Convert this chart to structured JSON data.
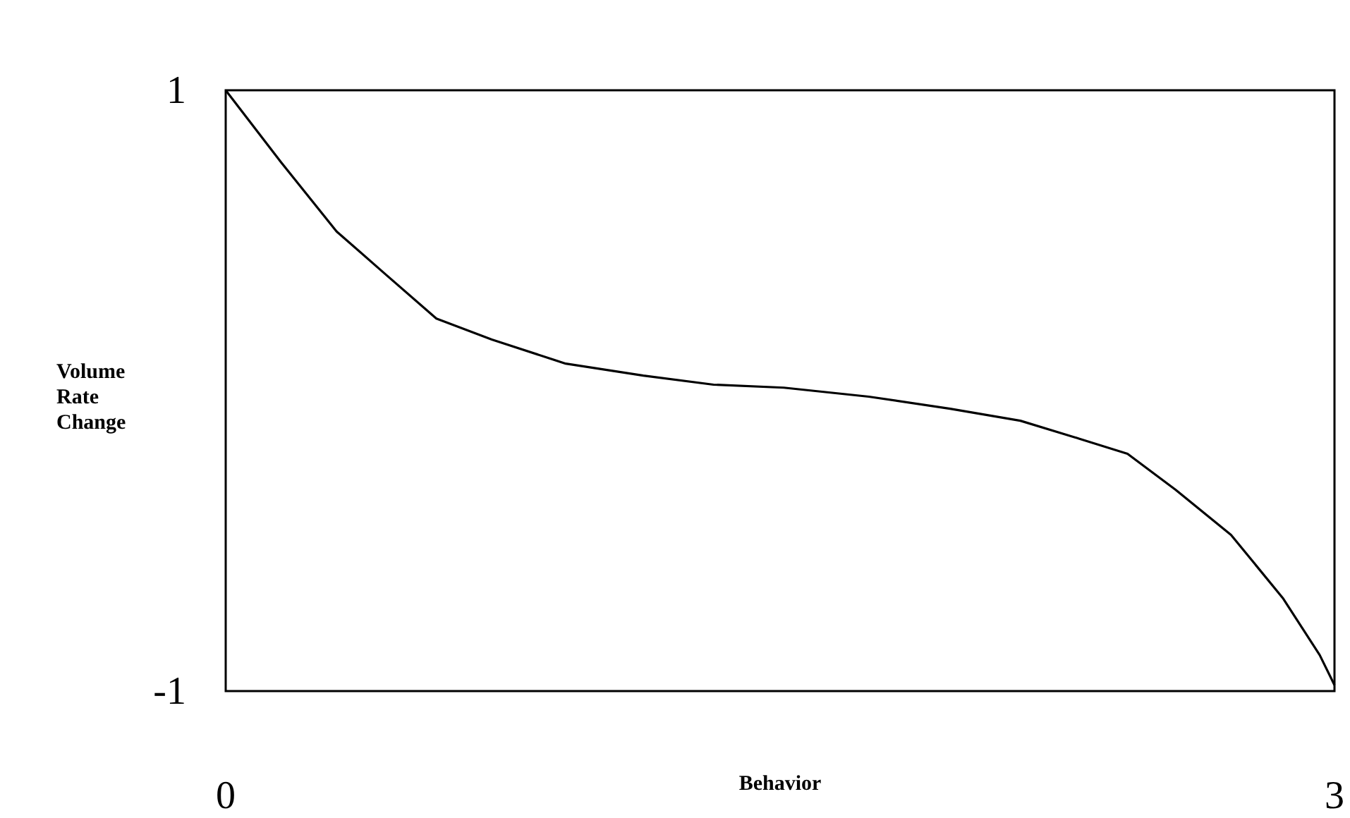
{
  "chart_data": {
    "type": "line",
    "xlabel": "Behavior",
    "ylabel": "Volume Rate Change",
    "x": [
      0,
      0.15,
      0.3,
      0.43,
      0.57,
      0.72,
      0.92,
      1.13,
      1.32,
      1.51,
      1.74,
      1.96,
      2.15,
      2.31,
      2.44,
      2.57,
      2.72,
      2.86,
      2.96,
      3
    ],
    "series": [
      {
        "color": "#000000",
        "values": [
          1,
          0.76,
          0.53,
          0.39,
          0.24,
          0.17,
          0.09,
          0.05,
          0.02,
          0.01,
          -0.02,
          -0.06,
          -0.1,
          -0.16,
          -0.21,
          -0.33,
          -0.48,
          -0.69,
          -0.88,
          -0.98
        ]
      }
    ],
    "xlim": [
      0,
      3
    ],
    "ylim": [
      -1,
      1
    ],
    "xticks": [
      0,
      3
    ],
    "yticks": [
      -1,
      1
    ],
    "marker": "none",
    "line_style": "solid"
  }
}
